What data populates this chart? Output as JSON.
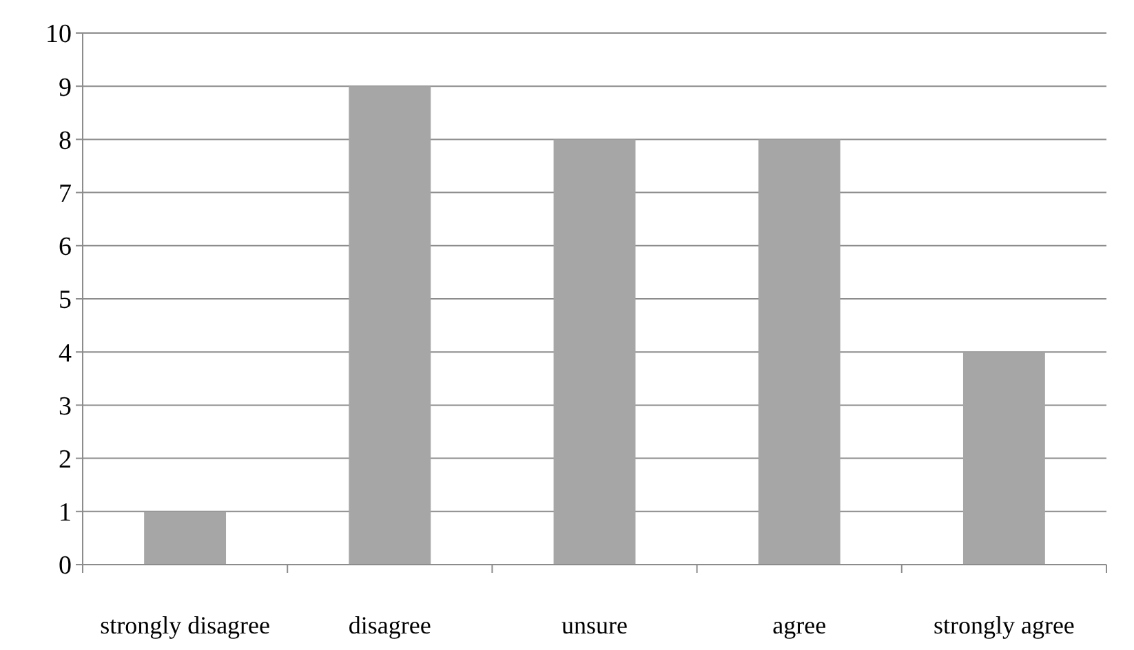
{
  "chart_data": {
    "type": "bar",
    "categories": [
      "strongly disagree",
      "disagree",
      "unsure",
      "agree",
      "strongly agree"
    ],
    "values": [
      1,
      9,
      8,
      8,
      4
    ],
    "color": "#a6a6a6",
    "ylim": [
      0,
      10
    ],
    "yticks": [
      0,
      1,
      2,
      3,
      4,
      5,
      6,
      7,
      8,
      9,
      10
    ],
    "grid": "y"
  }
}
